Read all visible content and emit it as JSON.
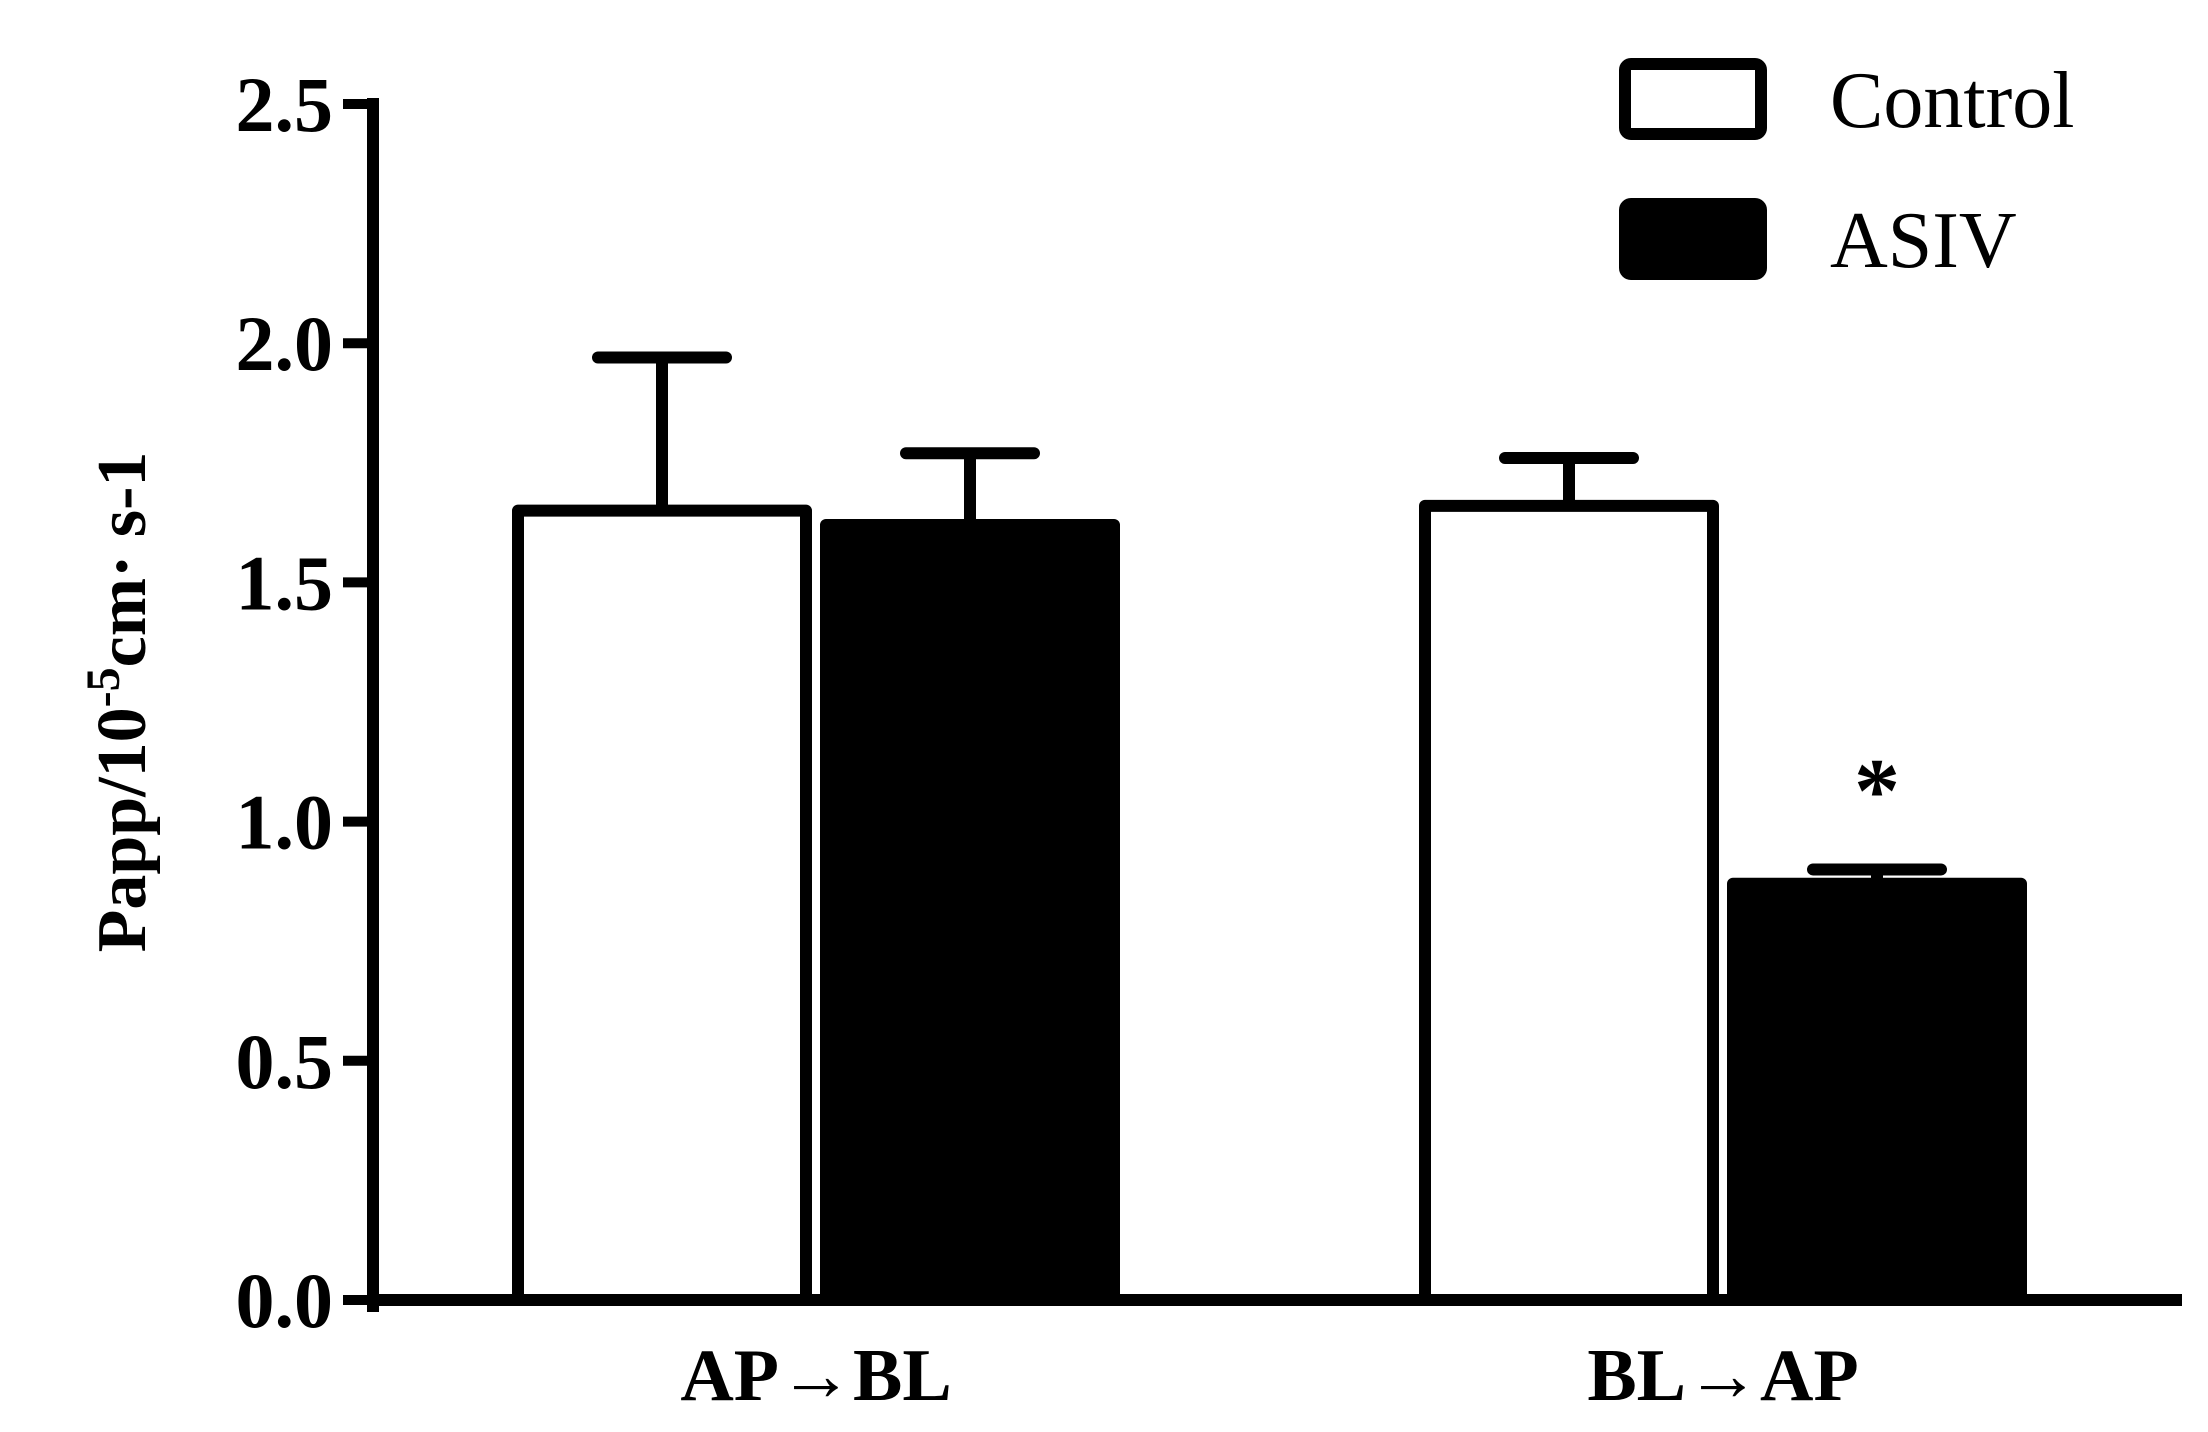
{
  "chart_data": {
    "type": "bar",
    "categories": [
      "AP→BL",
      "BL→AP"
    ],
    "series": [
      {
        "name": "Control",
        "values": [
          1.65,
          1.66
        ],
        "errors": [
          0.32,
          0.1
        ],
        "fill": "#ffffff"
      },
      {
        "name": "ASIV",
        "values": [
          1.62,
          0.87
        ],
        "errors": [
          0.15,
          0.03
        ],
        "fill": "#000000"
      }
    ],
    "ylabel_parts": {
      "main": "Papp/10",
      "exponent": "-5",
      "tail": "cm· s-1"
    },
    "ylim": [
      0,
      2.5
    ],
    "yticks": [
      "0.0",
      "0.5",
      "1.0",
      "1.5",
      "2.0",
      "2.5"
    ],
    "annotations": [
      {
        "category_index": 1,
        "series_index": 1,
        "text": "*"
      }
    ],
    "legend_position": "top-right",
    "grid": false,
    "colors": {
      "axis": "#000000",
      "outline": "#000000"
    }
  }
}
